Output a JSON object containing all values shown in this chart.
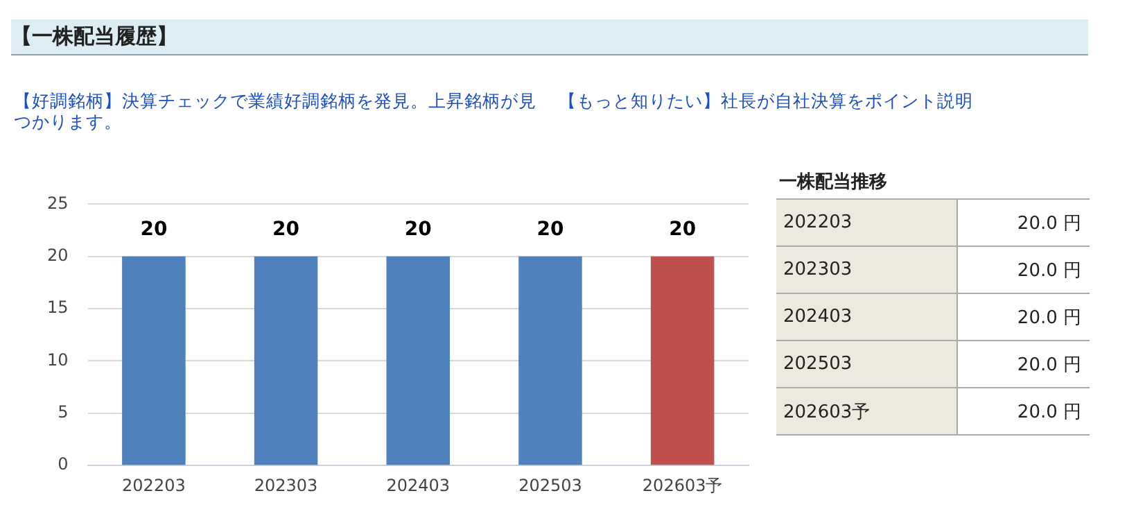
{
  "chart_data": {
    "type": "bar",
    "title": "【一株配当履歴】",
    "annotations": [
      "【好調銘柄】決算チェックで業績好調銘柄を発見。上昇銘柄が見つかります。",
      "【もっと知りたい】社長が自社決算をポイント説明",
      "一株配当推移",
      "202203",
      "20.0 円",
      "202303",
      "20.0 円",
      "202403",
      "20.0 円",
      "202503",
      "20.0 円",
      "202603予",
      "20.0 円"
    ],
    "categories": [
      "202203",
      "202303",
      "202403",
      "202503",
      "202603予"
    ],
    "values": [
      20,
      20,
      20,
      20,
      20
    ],
    "colors": [
      "#4f81bd",
      "#4f81bd",
      "#4f81bd",
      "#4f81bd",
      "#c0504d"
    ],
    "ylim": [
      0,
      25
    ],
    "yticks": [
      0,
      5,
      10,
      15,
      20,
      25
    ],
    "grid": "y",
    "data_labels": true
  }
}
